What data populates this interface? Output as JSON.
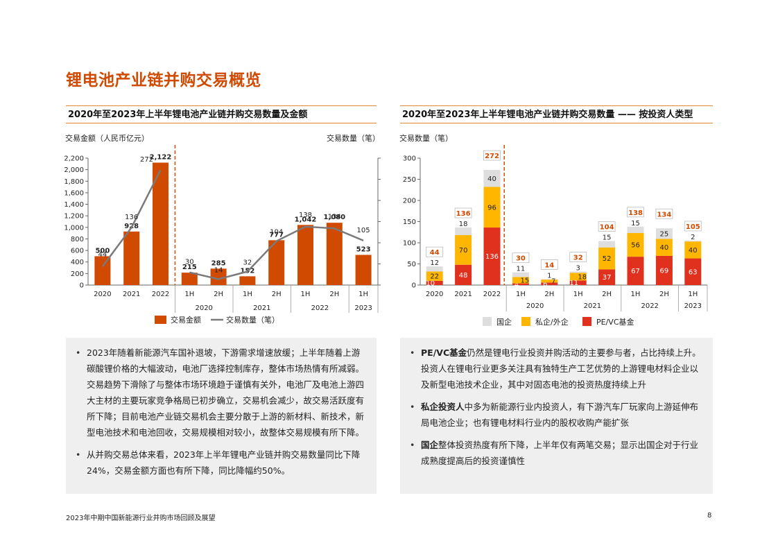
{
  "page": {
    "title": "锂电池产业链并购交易概览",
    "footer_left": "2023年中期中国新能源行业并购市场回顾及展望",
    "page_number": "8"
  },
  "left": {
    "header": "2020年至2023年上半年锂电池产业链并购交易数量及金额"
  },
  "right": {
    "header": "2020年至2023年上半年锂电池产业链并购交易数量 —— 按投资人类型"
  },
  "colors": {
    "accent": "#d04a02",
    "bar_orange": "#d04a02",
    "line_gray": "#7a7a7a",
    "pevc_red": "#e0301e",
    "private_yellow": "#ffb600",
    "state_gray": "#dedede"
  },
  "chart_data": [
    {
      "type": "bar",
      "categories": [
        "2020",
        "2021",
        "2022",
        "1H",
        "2H",
        "1H",
        "2H",
        "1H",
        "2H",
        "1H"
      ],
      "period_groups": [
        {
          "label": "2020",
          "from": 3,
          "to": 4
        },
        {
          "label": "2021",
          "from": 5,
          "to": 6
        },
        {
          "label": "2022",
          "from": 7,
          "to": 8
        },
        {
          "label": "2023",
          "from": 9,
          "to": 9
        }
      ],
      "series": [
        {
          "name": "交易金额",
          "type": "bar",
          "axis": "left",
          "values": [
            500,
            928,
            2122,
            215,
            285,
            152,
            777,
            1042,
            1080,
            523
          ],
          "labels": [
            "500",
            "928",
            "2,122",
            "215",
            "285",
            "152",
            "777",
            "1,042",
            "1,080",
            "523"
          ]
        },
        {
          "name": "交易数量（笔）",
          "type": "line",
          "axis": "right",
          "values": [
            44,
            136,
            272,
            30,
            14,
            32,
            104,
            138,
            134,
            105
          ],
          "labels": [
            "44",
            "136",
            "272",
            "30",
            "14",
            "32",
            "104",
            "138",
            "134",
            "105"
          ]
        }
      ],
      "ylabel": "交易金额（人民币亿元）",
      "y2label": "交易数量（笔）",
      "ylim": [
        0,
        2200
      ],
      "yticks": [
        "0",
        "200",
        "400",
        "600",
        "800",
        "1,000",
        "1,200",
        "1,400",
        "1,600",
        "1,800",
        "2,000",
        "2,200"
      ],
      "legend": [
        "交易金额",
        "交易数量（笔）"
      ],
      "legend_position": "bottom"
    },
    {
      "type": "bar",
      "stacked": true,
      "categories": [
        "2020",
        "2021",
        "2022",
        "1H",
        "2H",
        "1H",
        "2H",
        "1H",
        "2H",
        "1H"
      ],
      "period_groups": [
        {
          "label": "2020",
          "from": 3,
          "to": 4
        },
        {
          "label": "2021",
          "from": 5,
          "to": 6
        },
        {
          "label": "2022",
          "from": 7,
          "to": 8
        },
        {
          "label": "2023",
          "from": 9,
          "to": 9
        }
      ],
      "series": [
        {
          "name": "PE/VC基金",
          "values": [
            10,
            48,
            136,
            4,
            6,
            11,
            37,
            67,
            69,
            63
          ]
        },
        {
          "name": "私企/外企",
          "values": [
            22,
            70,
            96,
            15,
            7,
            18,
            52,
            56,
            40,
            40
          ]
        },
        {
          "name": "国企",
          "values": [
            12,
            18,
            40,
            11,
            1,
            3,
            15,
            15,
            25,
            2
          ]
        }
      ],
      "totals": [
        44,
        136,
        272,
        30,
        14,
        32,
        104,
        138,
        134,
        105
      ],
      "ylabel": "交易数量（笔）",
      "ylim": [
        0,
        300
      ],
      "yticks": [
        "0",
        "50",
        "100",
        "150",
        "200",
        "250",
        "300"
      ],
      "legend": [
        "国企",
        "私企/外企",
        "PE/VC基金"
      ],
      "legend_position": "bottom"
    }
  ],
  "notes_left": [
    "2023年随着新能源汽车国补退坡，下游需求增速放缓；上半年随着上游碳酸锂价格的大幅波动，电池厂选择控制库存，整体市场热情有所减弱。交易趋势下滑除了与整体市场环境趋于谨慎有关外，电池厂及电池上游四大主材的主要玩家竞争格局已初步确立，交易机会减少，故交易活跃度有所下降；目前电池产业链交易机会主要分散于上游的新材料、新技术，新型电池技术和电池回收，交易规模相对较小，故整体交易规模有所下降。",
    "从并购交易总体来看，2023年上半年锂电产业链并购交易数量同比下降24%，交易金额方面也有所下降，同比降幅约50%。"
  ],
  "notes_right": [
    {
      "bold": "PE/VC基金",
      "text": "仍然是锂电行业投资并购活动的主要参与者，占比持续上升。投资人在锂电行业更多关注具有独特生产工艺优势的上游锂电材料企业以及新型电池技术企业，其中对固态电池的投资热度持续上升"
    },
    {
      "bold": "私企投资人",
      "text": "中多为新能源行业内投资人，有下游汽车厂玩家向上游延伸布局电池企业；也有锂电材料行业内的股权收购产能扩张"
    },
    {
      "bold": "国企",
      "text": "整体投资热度有所下降，上半年仅有两笔交易；显示出国企对于行业成熟度提高后的投资谨慎性"
    }
  ]
}
